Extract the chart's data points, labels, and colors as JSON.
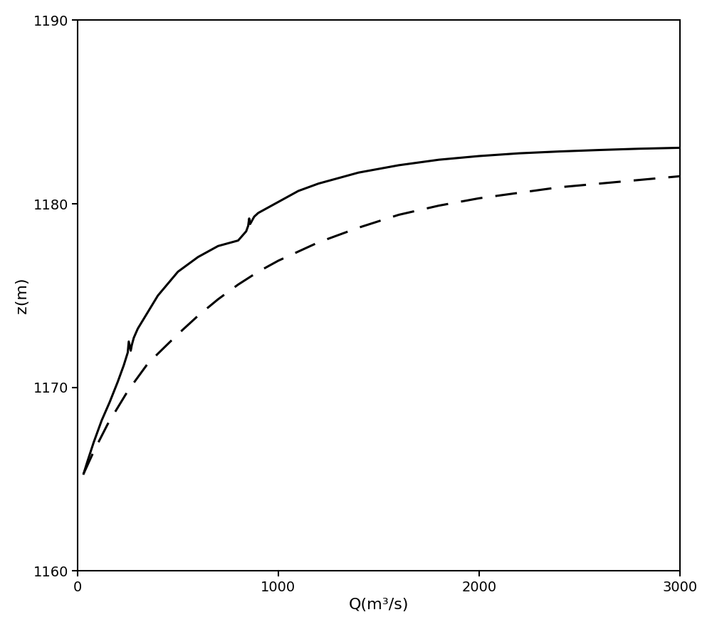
{
  "xlim": [
    0,
    3000
  ],
  "ylim": [
    1160,
    1190
  ],
  "xlabel": "Q(m³/s)",
  "ylabel": "z(m)",
  "xticks": [
    0,
    1000,
    2000,
    3000
  ],
  "yticks": [
    1160,
    1170,
    1180,
    1190
  ],
  "background_color": "#ffffff",
  "line_color": "#000000",
  "solid_line": {
    "Q": [
      30,
      50,
      80,
      120,
      160,
      200,
      230,
      250,
      255,
      265,
      270,
      280,
      300,
      350,
      400,
      500,
      600,
      700,
      800,
      840,
      850,
      855,
      860,
      870,
      880,
      900,
      950,
      1000,
      1100,
      1200,
      1400,
      1600,
      1800,
      2000,
      2200,
      2400,
      2600,
      2800,
      3000
    ],
    "z": [
      1165.3,
      1166.0,
      1167.0,
      1168.2,
      1169.2,
      1170.3,
      1171.2,
      1171.9,
      1172.5,
      1172.0,
      1172.3,
      1172.7,
      1173.2,
      1174.1,
      1175.0,
      1176.3,
      1177.1,
      1177.7,
      1178.0,
      1178.5,
      1178.8,
      1179.2,
      1178.9,
      1179.1,
      1179.3,
      1179.5,
      1179.8,
      1180.1,
      1180.7,
      1181.1,
      1181.7,
      1182.1,
      1182.4,
      1182.6,
      1182.75,
      1182.85,
      1182.93,
      1183.0,
      1183.05
    ]
  },
  "dashed_line": {
    "Q": [
      30,
      80,
      150,
      250,
      350,
      500,
      600,
      700,
      800,
      900,
      1000,
      1200,
      1400,
      1600,
      1800,
      2000,
      2200,
      2400,
      2600,
      2800,
      3000
    ],
    "z": [
      1165.3,
      1166.5,
      1168.0,
      1169.8,
      1171.3,
      1172.9,
      1173.9,
      1174.8,
      1175.6,
      1176.3,
      1176.9,
      1177.9,
      1178.7,
      1179.4,
      1179.9,
      1180.3,
      1180.6,
      1180.9,
      1181.1,
      1181.3,
      1181.5
    ]
  },
  "tick_fontsize": 14,
  "label_fontsize": 16,
  "linewidth": 2.2
}
